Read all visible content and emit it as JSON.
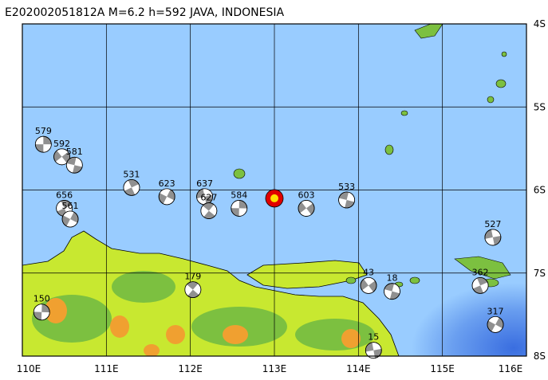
{
  "map": {
    "title": "E202002051812A  M=6.2  h=592  JAVA, INDONESIA",
    "xlim": [
      110,
      116
    ],
    "ylim": [
      -8,
      -4
    ],
    "xticks": [
      {
        "value": 110,
        "label": "110E"
      },
      {
        "value": 111,
        "label": "111E"
      },
      {
        "value": 112,
        "label": "112E"
      },
      {
        "value": 113,
        "label": "113E"
      },
      {
        "value": 114,
        "label": "114E"
      },
      {
        "value": 115,
        "label": "115E"
      },
      {
        "value": 116,
        "label": "116E"
      }
    ],
    "yticks": [
      {
        "value": -4,
        "label": "4S"
      },
      {
        "value": -5,
        "label": "5S"
      },
      {
        "value": -6,
        "label": "6S"
      },
      {
        "value": -7,
        "label": "7S"
      },
      {
        "value": -8,
        "label": "8S"
      }
    ],
    "grid": true,
    "main_event": {
      "lon": 113.0,
      "lat": -6.1
    },
    "events": [
      {
        "label": "579",
        "lon": 110.25,
        "lat": -5.45
      },
      {
        "label": "592",
        "lon": 110.47,
        "lat": -5.6
      },
      {
        "label": "581",
        "lon": 110.62,
        "lat": -5.7
      },
      {
        "label": "531",
        "lon": 111.3,
        "lat": -5.97
      },
      {
        "label": "623",
        "lon": 111.72,
        "lat": -6.08
      },
      {
        "label": "637",
        "lon": 112.17,
        "lat": -6.08
      },
      {
        "label": "627",
        "lon": 112.22,
        "lat": -6.25
      },
      {
        "label": "584",
        "lon": 112.58,
        "lat": -6.22
      },
      {
        "label": "603",
        "lon": 113.38,
        "lat": -6.22
      },
      {
        "label": "533",
        "lon": 113.86,
        "lat": -6.12
      },
      {
        "label": "656",
        "lon": 110.5,
        "lat": -6.22
      },
      {
        "label": "561",
        "lon": 110.57,
        "lat": -6.35
      },
      {
        "label": "527",
        "lon": 115.6,
        "lat": -6.57
      },
      {
        "label": "179",
        "lon": 112.03,
        "lat": -7.2
      },
      {
        "label": "150",
        "lon": 110.23,
        "lat": -7.47
      },
      {
        "label": "43",
        "lon": 114.12,
        "lat": -7.15
      },
      {
        "label": "18",
        "lon": 114.4,
        "lat": -7.22
      },
      {
        "label": "362",
        "lon": 115.45,
        "lat": -7.15
      },
      {
        "label": "317",
        "lon": 115.63,
        "lat": -7.62
      },
      {
        "label": "15",
        "lon": 114.18,
        "lat": -7.93
      }
    ]
  }
}
